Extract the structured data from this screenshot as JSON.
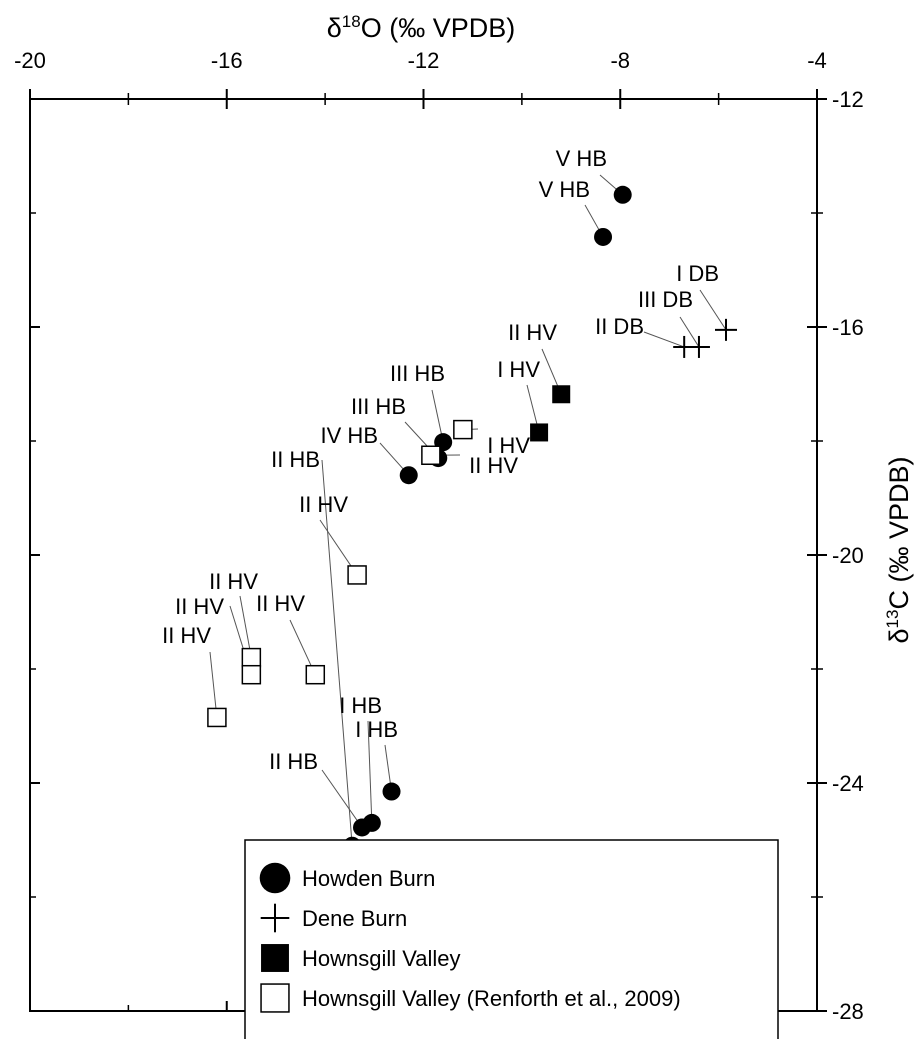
{
  "chart_data": {
    "type": "scatter",
    "xlabel_base": "δ",
    "xlabel_sup": "18",
    "xlabel_rest": "O (‰ VPDB)",
    "ylabel_base": "δ",
    "ylabel_sup": "13",
    "ylabel_rest": "C (‰ VPDB)",
    "xlim": [
      -20,
      -4
    ],
    "ylim": [
      -28,
      -12
    ],
    "x_axis_position": "top",
    "y_axis_position": "right",
    "x_ticks": [
      -20,
      -16,
      -12,
      -8,
      -4
    ],
    "y_ticks": [
      -12,
      -16,
      -20,
      -24,
      -28
    ],
    "grid": false,
    "legend_position": "bottom-right",
    "series": [
      {
        "name": "Howden Burn",
        "marker": "filled-circle",
        "points": [
          {
            "x": -7.95,
            "y": -13.68,
            "label": "V HB"
          },
          {
            "x": -8.35,
            "y": -14.42,
            "label": "V HB"
          },
          {
            "x": -11.6,
            "y": -18.02,
            "label": "III HB"
          },
          {
            "x": -11.7,
            "y": -18.3,
            "label": "III HB"
          },
          {
            "x": -12.3,
            "y": -18.6,
            "label": "IV HB"
          },
          {
            "x": -12.65,
            "y": -24.15,
            "label": "I HB"
          },
          {
            "x": -13.25,
            "y": -24.78,
            "label": "II HB"
          },
          {
            "x": -13.05,
            "y": -24.7,
            "label": "I HB"
          },
          {
            "x": -13.45,
            "y": -25.1,
            "label": "II HB"
          }
        ]
      },
      {
        "name": "Dene Burn",
        "marker": "plus",
        "points": [
          {
            "x": -5.85,
            "y": -16.05,
            "label": "I DB"
          },
          {
            "x": -6.4,
            "y": -16.35,
            "label": "III DB"
          },
          {
            "x": -6.7,
            "y": -16.35,
            "label": "II DB"
          }
        ]
      },
      {
        "name": "Hownsgill Valley",
        "marker": "filled-square",
        "points": [
          {
            "x": -9.2,
            "y": -17.18,
            "label": "II HV"
          },
          {
            "x": -9.65,
            "y": -17.85,
            "label": "I HV"
          }
        ]
      },
      {
        "name": "Hownsgill Valley (Renforth et al., 2009)",
        "marker": "open-square",
        "points": [
          {
            "x": -11.2,
            "y": -17.8,
            "label": "I HV"
          },
          {
            "x": -11.85,
            "y": -18.25,
            "label": "II HV"
          },
          {
            "x": -13.35,
            "y": -20.35,
            "label": "II HV"
          },
          {
            "x": -15.5,
            "y": -21.8,
            "label": "II HV"
          },
          {
            "x": -15.5,
            "y": -22.1,
            "label": "II HV"
          },
          {
            "x": -14.2,
            "y": -22.1,
            "label": "II HV"
          },
          {
            "x": -16.2,
            "y": -22.85,
            "label": "II HV"
          }
        ]
      }
    ]
  }
}
